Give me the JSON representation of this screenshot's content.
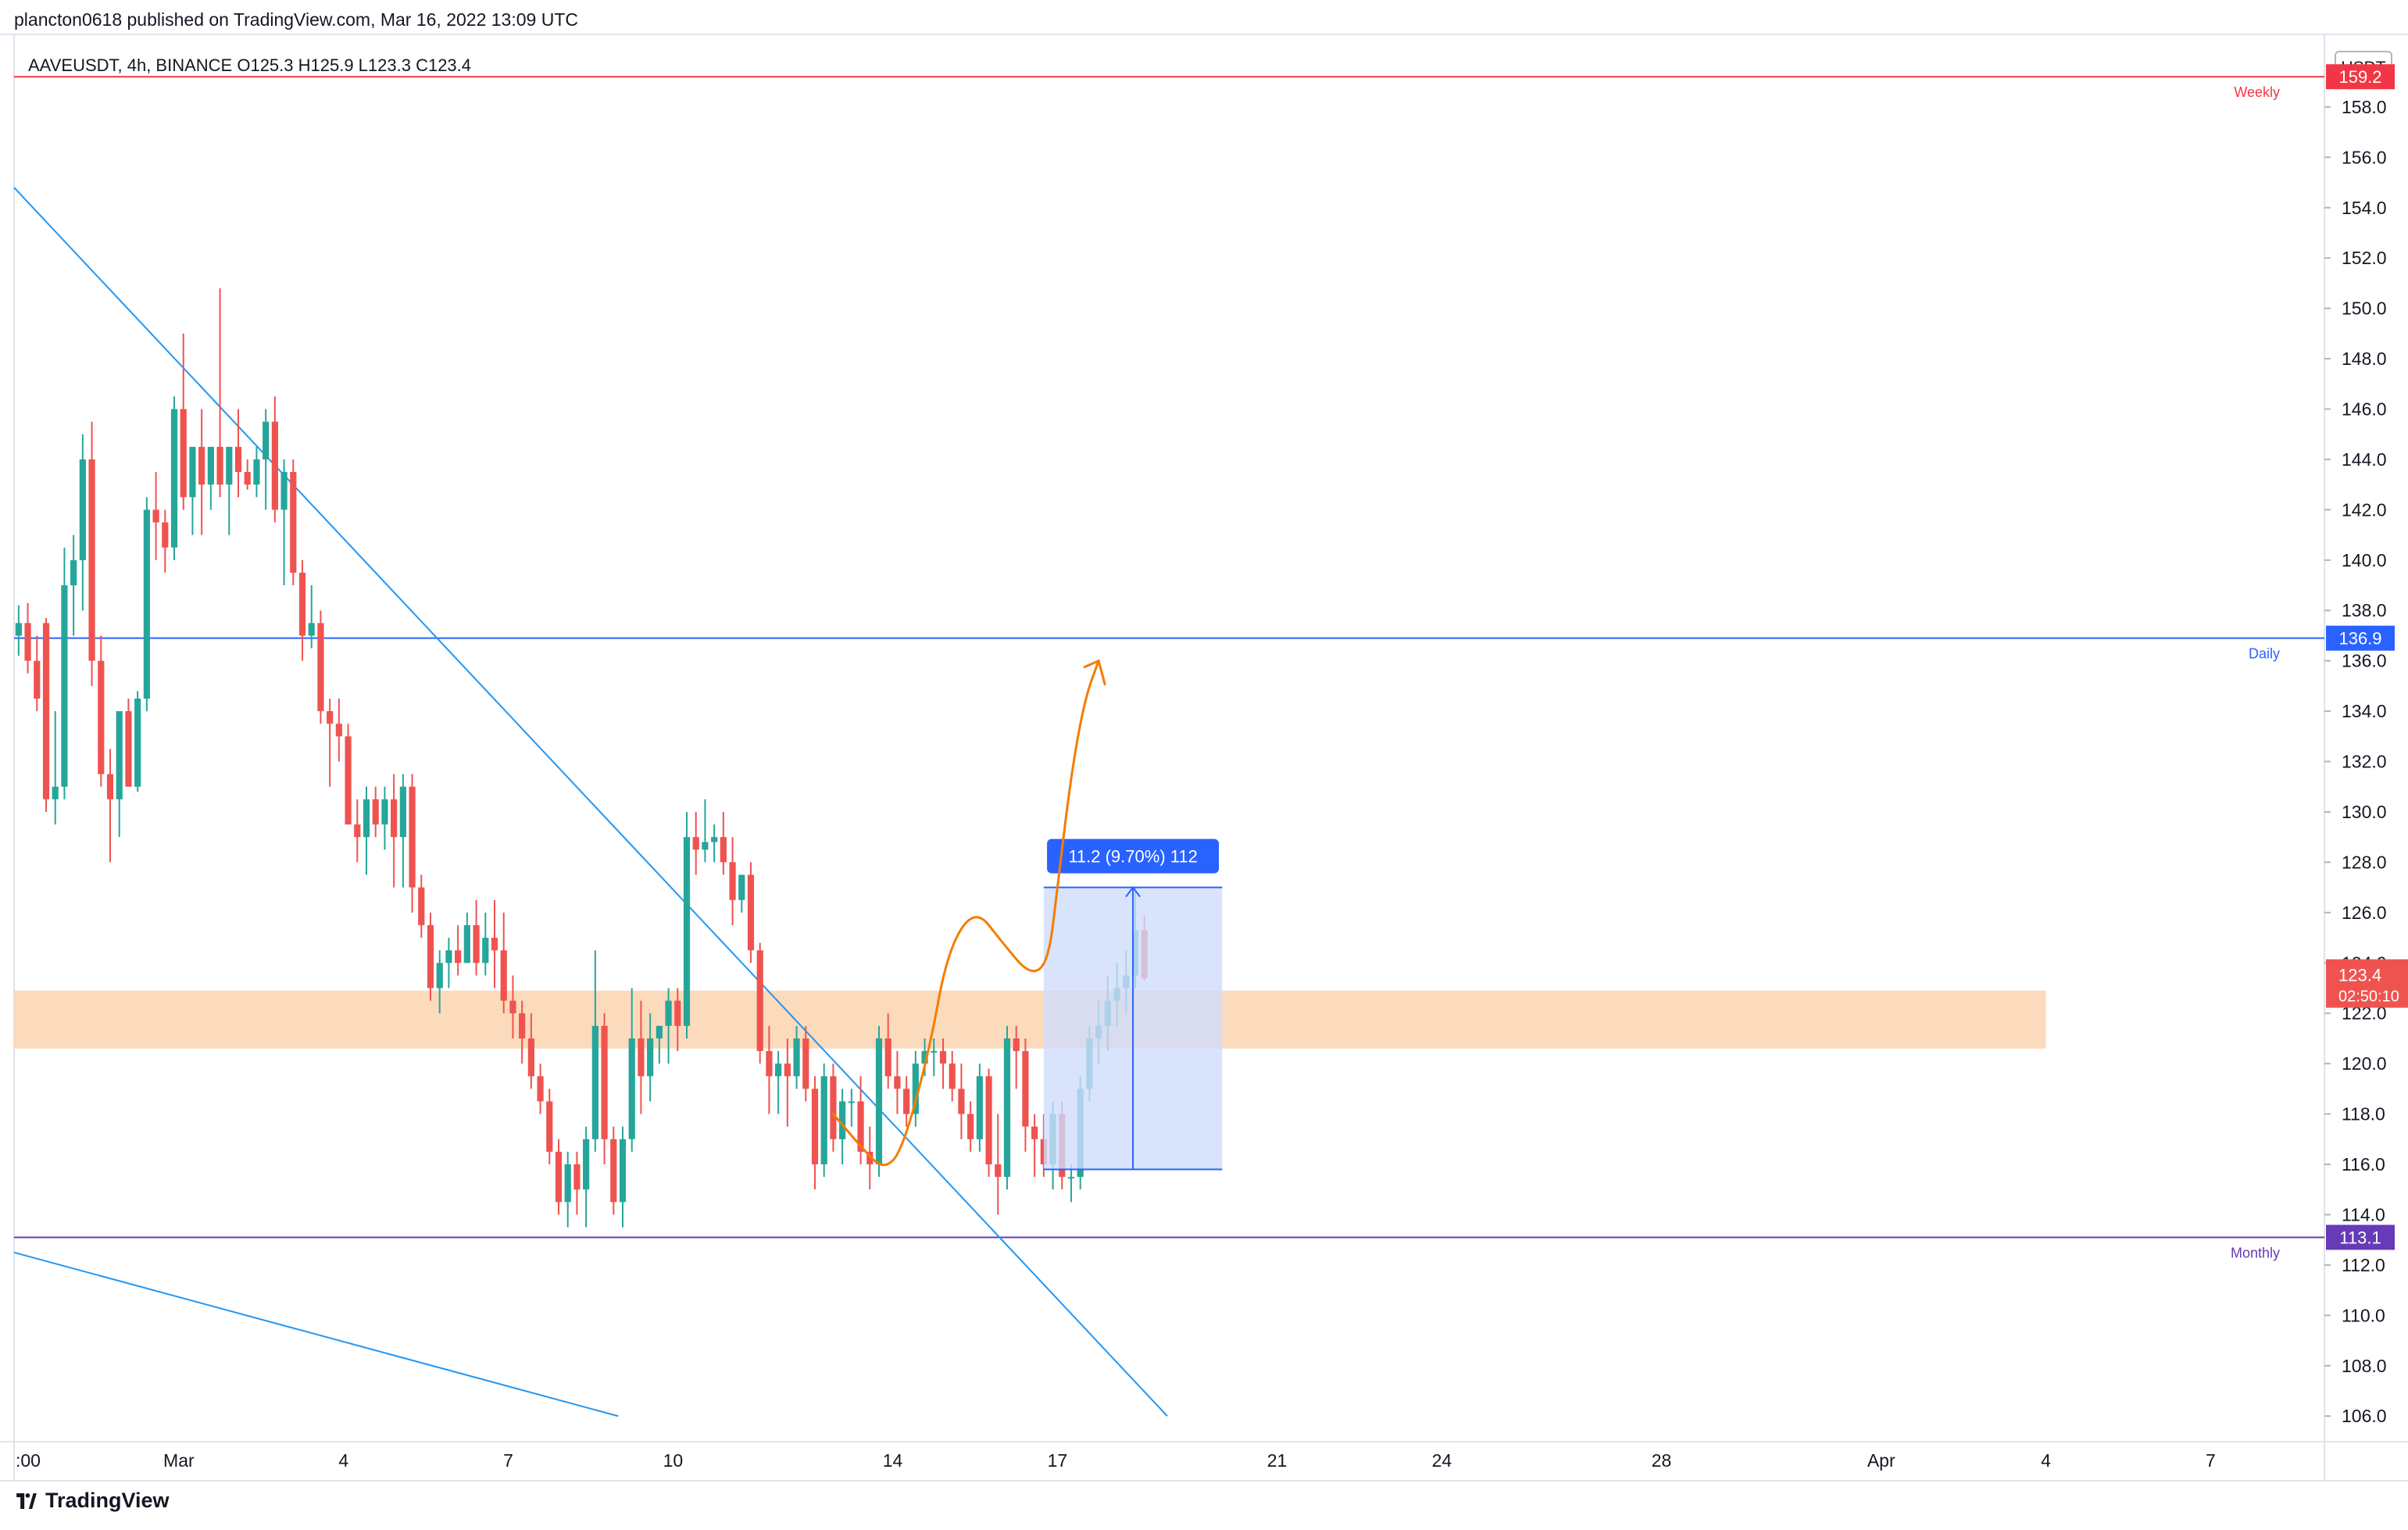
{
  "header": {
    "published": "plancton0618 published on TradingView.com, Mar 16, 2022 13:09 UTC"
  },
  "footer": {
    "brand": "TradingView",
    "logo_icon": "tradingview-logo-icon"
  },
  "colors": {
    "up": "#26a69a",
    "down": "#ef5350",
    "weekly": "#f23645",
    "daily": "#2962ff",
    "monthly": "#673ab7",
    "zone": "#fbd4b0",
    "trend": "#2196f3",
    "arrow": "#f57c00",
    "measure_fill": "#cfdcfb",
    "measure_line": "#2962ff",
    "grid": "#e0e3eb",
    "axis_text": "#131722"
  },
  "chart_data": {
    "type": "candlestick",
    "symbol_info": "AAVEUSDT, 4h, BINANCE  O125.3  H125.9  L123.3  C123.4",
    "price_axis_unit": "USDT",
    "ylim": [
      105.2,
      160.2
    ],
    "y_ticks": [
      "158.0",
      "156.0",
      "154.0",
      "152.0",
      "150.0",
      "148.0",
      "146.0",
      "144.0",
      "142.0",
      "140.0",
      "138.0",
      "136.0",
      "134.0",
      "132.0",
      "130.0",
      "128.0",
      "126.0",
      "124.0",
      "122.0",
      "120.0",
      "118.0",
      "116.0",
      "114.0",
      "112.0",
      "110.0",
      "108.0",
      "106.0"
    ],
    "x_ticks": [
      {
        "label": ":00",
        "date": "2022-02-26"
      },
      {
        "label": "Mar",
        "date": "2022-03-01"
      },
      {
        "label": "4",
        "date": "2022-03-04"
      },
      {
        "label": "7",
        "date": "2022-03-07"
      },
      {
        "label": "10",
        "date": "2022-03-10"
      },
      {
        "label": "14",
        "date": "2022-03-14"
      },
      {
        "label": "17",
        "date": "2022-03-17"
      },
      {
        "label": "21",
        "date": "2022-03-21"
      },
      {
        "label": "24",
        "date": "2022-03-24"
      },
      {
        "label": "28",
        "date": "2022-03-28"
      },
      {
        "label": "Apr",
        "date": "2022-04-01"
      },
      {
        "label": "4",
        "date": "2022-04-04"
      },
      {
        "label": "7",
        "date": "2022-04-07"
      }
    ],
    "x_start": "2022-02-26",
    "x_end": "2022-04-09",
    "candles": [
      [
        137.0,
        138.2,
        136.2,
        137.5
      ],
      [
        137.5,
        138.3,
        135.5,
        136.0
      ],
      [
        136.0,
        137.0,
        134.0,
        134.5
      ],
      [
        137.5,
        137.7,
        130.0,
        130.5
      ],
      [
        130.5,
        134.0,
        129.5,
        131.0
      ],
      [
        131.0,
        140.5,
        130.5,
        139.0
      ],
      [
        139.0,
        141.0,
        137.0,
        140.0
      ],
      [
        140.0,
        145.0,
        138.0,
        144.0
      ],
      [
        144.0,
        145.5,
        135.0,
        136.0
      ],
      [
        136.0,
        137.0,
        131.0,
        131.5
      ],
      [
        131.5,
        132.5,
        128.0,
        130.5
      ],
      [
        130.5,
        133.5,
        129.0,
        134.0
      ],
      [
        134.0,
        134.5,
        131.0,
        131.0
      ],
      [
        131.0,
        134.8,
        130.8,
        134.5
      ],
      [
        134.5,
        142.5,
        134.0,
        142.0
      ],
      [
        142.0,
        143.5,
        140.0,
        141.5
      ],
      [
        141.5,
        142.0,
        139.5,
        140.5
      ],
      [
        140.5,
        146.5,
        140.0,
        146.0
      ],
      [
        146.0,
        149.0,
        142.0,
        142.5
      ],
      [
        142.5,
        144.5,
        141.0,
        144.5
      ],
      [
        144.5,
        146.0,
        141.0,
        143.0
      ],
      [
        143.0,
        144.5,
        142.0,
        144.5
      ],
      [
        144.5,
        150.8,
        142.5,
        143.0
      ],
      [
        143.0,
        144.5,
        141.0,
        144.5
      ],
      [
        144.5,
        146.0,
        142.5,
        143.5
      ],
      [
        143.5,
        144.0,
        142.8,
        143.0
      ],
      [
        143.0,
        144.5,
        142.5,
        144.0
      ],
      [
        144.0,
        146.0,
        142.0,
        145.5
      ],
      [
        145.5,
        146.5,
        141.5,
        142.0
      ],
      [
        142.0,
        144.0,
        139.0,
        143.5
      ],
      [
        143.5,
        144.0,
        139.0,
        139.5
      ],
      [
        139.5,
        140.0,
        136.0,
        137.0
      ],
      [
        137.0,
        139.0,
        136.5,
        137.5
      ],
      [
        137.5,
        138.0,
        133.5,
        134.0
      ],
      [
        134.0,
        134.5,
        131.0,
        133.5
      ],
      [
        133.5,
        134.5,
        132.0,
        133.0
      ],
      [
        133.0,
        133.5,
        129.5,
        129.5
      ],
      [
        129.5,
        130.5,
        128.0,
        129.0
      ],
      [
        129.0,
        131.0,
        127.5,
        130.5
      ],
      [
        130.5,
        131.0,
        129.0,
        129.5
      ],
      [
        129.5,
        131.0,
        128.5,
        130.5
      ],
      [
        130.5,
        131.5,
        127.0,
        129.0
      ],
      [
        129.0,
        131.5,
        127.0,
        131.0
      ],
      [
        131.0,
        131.5,
        126.0,
        127.0
      ],
      [
        127.0,
        127.5,
        125.0,
        125.5
      ],
      [
        125.5,
        126.0,
        122.5,
        123.0
      ],
      [
        123.0,
        124.5,
        122.0,
        124.0
      ],
      [
        124.0,
        125.0,
        123.0,
        124.5
      ],
      [
        124.5,
        125.5,
        123.5,
        124.0
      ],
      [
        124.0,
        126.0,
        124.0,
        125.5
      ],
      [
        125.5,
        126.5,
        123.5,
        124.0
      ],
      [
        124.0,
        126.0,
        123.5,
        125.0
      ],
      [
        125.0,
        126.5,
        123.0,
        124.5
      ],
      [
        124.5,
        126.0,
        122.0,
        122.5
      ],
      [
        122.5,
        123.5,
        121.0,
        122.0
      ],
      [
        122.0,
        122.5,
        120.0,
        121.0
      ],
      [
        121.0,
        122.0,
        119.0,
        119.5
      ],
      [
        119.5,
        120.0,
        118.0,
        118.5
      ],
      [
        118.5,
        119.0,
        116.0,
        116.5
      ],
      [
        116.5,
        117.0,
        114.0,
        114.5
      ],
      [
        114.5,
        116.5,
        113.5,
        116.0
      ],
      [
        116.0,
        116.5,
        114.0,
        115.0
      ],
      [
        115.0,
        117.5,
        113.5,
        117.0
      ],
      [
        117.0,
        124.5,
        116.5,
        121.5
      ],
      [
        121.5,
        122.0,
        116.0,
        117.0
      ],
      [
        117.0,
        117.5,
        114.0,
        114.5
      ],
      [
        114.5,
        117.5,
        113.5,
        117.0
      ],
      [
        117.0,
        123.0,
        116.5,
        121.0
      ],
      [
        121.0,
        122.5,
        118.0,
        119.5
      ],
      [
        119.5,
        122.0,
        118.5,
        121.0
      ],
      [
        121.0,
        121.5,
        120.0,
        121.5
      ],
      [
        121.5,
        123.0,
        120.0,
        122.5
      ],
      [
        122.5,
        123.0,
        120.5,
        121.5
      ],
      [
        121.5,
        130.0,
        121.0,
        129.0
      ],
      [
        129.0,
        130.0,
        127.5,
        128.5
      ],
      [
        128.5,
        130.5,
        128.0,
        128.8
      ],
      [
        128.8,
        129.5,
        128.0,
        129.0
      ],
      [
        129.0,
        130.0,
        127.5,
        128.0
      ],
      [
        128.0,
        129.0,
        125.5,
        126.5
      ],
      [
        126.5,
        127.5,
        126.0,
        127.5
      ],
      [
        127.5,
        128.0,
        124.0,
        124.5
      ],
      [
        124.5,
        124.8,
        120.0,
        120.5
      ],
      [
        120.5,
        121.5,
        118.0,
        119.5
      ],
      [
        119.5,
        120.5,
        118.0,
        120.0
      ],
      [
        120.0,
        121.0,
        117.5,
        119.5
      ],
      [
        119.5,
        121.5,
        119.0,
        121.0
      ],
      [
        121.0,
        121.5,
        118.5,
        119.0
      ],
      [
        119.0,
        119.5,
        115.0,
        116.0
      ],
      [
        116.0,
        120.0,
        115.5,
        119.5
      ],
      [
        119.5,
        120.0,
        116.5,
        117.0
      ],
      [
        117.0,
        119.0,
        116.0,
        118.5
      ],
      [
        118.5,
        119.0,
        117.5,
        118.5
      ],
      [
        118.5,
        119.5,
        116.0,
        116.5
      ],
      [
        116.5,
        117.5,
        115.0,
        116.0
      ],
      [
        116.0,
        121.5,
        115.5,
        121.0
      ],
      [
        121.0,
        122.0,
        119.0,
        119.5
      ],
      [
        119.5,
        120.5,
        118.0,
        119.0
      ],
      [
        119.0,
        119.5,
        117.5,
        118.0
      ],
      [
        118.0,
        120.5,
        117.5,
        120.0
      ],
      [
        120.0,
        121.0,
        119.5,
        120.5
      ],
      [
        120.5,
        121.0,
        119.5,
        120.5
      ],
      [
        120.5,
        121.0,
        119.0,
        120.0
      ],
      [
        120.0,
        120.5,
        118.5,
        119.0
      ],
      [
        119.0,
        120.0,
        117.0,
        118.0
      ],
      [
        118.0,
        118.5,
        116.5,
        117.0
      ],
      [
        117.0,
        120.0,
        116.5,
        119.5
      ],
      [
        119.5,
        119.8,
        115.5,
        116.0
      ],
      [
        116.0,
        118.0,
        114.0,
        115.5
      ],
      [
        115.5,
        121.5,
        115.0,
        121.0
      ],
      [
        121.0,
        121.5,
        119.0,
        120.5
      ],
      [
        120.5,
        121.0,
        116.5,
        117.5
      ],
      [
        117.5,
        118.0,
        115.5,
        117.0
      ],
      [
        117.0,
        118.0,
        115.5,
        116.0
      ],
      [
        116.0,
        118.5,
        115.0,
        118.0
      ],
      [
        118.0,
        118.5,
        115.0,
        115.5
      ],
      [
        115.5,
        116.0,
        114.5,
        115.5
      ],
      [
        115.5,
        119.5,
        115.0,
        119.0
      ],
      [
        119.0,
        121.5,
        118.5,
        121.0
      ],
      [
        121.0,
        122.5,
        120.0,
        121.5
      ],
      [
        121.5,
        123.5,
        120.5,
        122.5
      ],
      [
        122.5,
        124.0,
        121.5,
        123.0
      ],
      [
        123.0,
        124.5,
        122.0,
        123.5
      ],
      [
        123.5,
        127.0,
        123.0,
        125.3
      ],
      [
        125.3,
        125.9,
        123.3,
        123.4
      ]
    ],
    "levels": [
      {
        "price": 159.2,
        "label": "Weekly",
        "color": "#f23645",
        "badge": "159.2"
      },
      {
        "price": 136.9,
        "label": "Daily",
        "color": "#2962ff",
        "badge": "136.9"
      },
      {
        "price": 113.1,
        "label": "Monthly",
        "color": "#673ab7",
        "badge": "113.1"
      }
    ],
    "zone": {
      "from": "2022-02-26",
      "to": "2022-04-04",
      "low": 120.6,
      "high": 122.9
    },
    "trendlines": [
      {
        "from": [
          "2022-02-26",
          154.8
        ],
        "to": [
          "2022-03-19",
          106.0
        ]
      },
      {
        "from": [
          "2022-02-26",
          112.5
        ],
        "to": [
          "2022-03-09",
          106.0
        ]
      }
    ],
    "measure": {
      "from": "2022-03-16T18:00",
      "to": "2022-03-20",
      "low": 115.8,
      "high": 127.0,
      "label": "11.2 (9.70%) 112"
    },
    "projection_path": [
      [
        "2022-03-12T22:00",
        118.0
      ],
      [
        "2022-03-13T12:00",
        116.5
      ],
      [
        "2022-03-13T20:00",
        115.8
      ],
      [
        "2022-03-14T04:00",
        116.5
      ],
      [
        "2022-03-14T16:00",
        120.5
      ],
      [
        "2022-03-15T00:00",
        124.5
      ],
      [
        "2022-03-15T12:00",
        126.2
      ],
      [
        "2022-03-16T00:00",
        124.8
      ],
      [
        "2022-03-16T12:00",
        123.5
      ],
      [
        "2022-03-16T20:00",
        124.0
      ],
      [
        "2022-03-17T00:00",
        127.0
      ],
      [
        "2022-03-17T06:00",
        131.5
      ],
      [
        "2022-03-17T12:00",
        134.5
      ],
      [
        "2022-03-17T18:00",
        136.0
      ]
    ],
    "last_price": {
      "value": 123.4,
      "label": "123.4",
      "countdown": "02:50:10"
    }
  }
}
